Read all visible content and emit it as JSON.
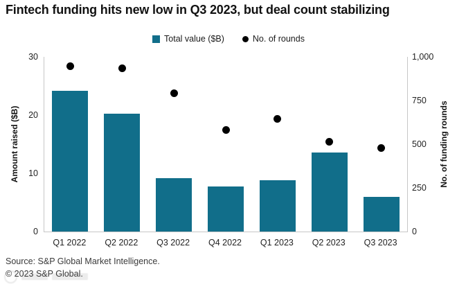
{
  "title": "Fintech funding hits new low in Q3 2023, but deal count stabilizing",
  "legend": {
    "bar_label": "Total value ($B)",
    "dot_label": "No. of rounds"
  },
  "chart_data": {
    "type": "bar",
    "categories": [
      "Q1 2022",
      "Q2 2022",
      "Q3 2022",
      "Q4 2022",
      "Q1 2023",
      "Q2 2023",
      "Q3 2023"
    ],
    "series": [
      {
        "name": "Total value ($B)",
        "type": "bar",
        "axis": "left",
        "values": [
          24.2,
          20.3,
          9.2,
          7.8,
          8.8,
          13.6,
          5.9
        ]
      },
      {
        "name": "No. of rounds",
        "type": "scatter",
        "axis": "right",
        "values": [
          945,
          935,
          790,
          580,
          645,
          515,
          480
        ]
      }
    ],
    "left_axis": {
      "label": "Amount raised ($B)",
      "ticks": [
        "30",
        "20",
        "10",
        "0"
      ],
      "range": [
        0,
        30
      ]
    },
    "right_axis": {
      "label": "No. of funding rounds",
      "ticks": [
        "1,000",
        "750",
        "500",
        "250",
        "0"
      ],
      "range": [
        0,
        1000
      ]
    },
    "grid": "off",
    "legend_position": "top-center",
    "colors": {
      "bar": "#116e8a",
      "dot": "#000000"
    }
  },
  "footer": {
    "source": "Source: S&P Global Market Intelligence.",
    "copyright": "© 2023 S&P Global."
  }
}
